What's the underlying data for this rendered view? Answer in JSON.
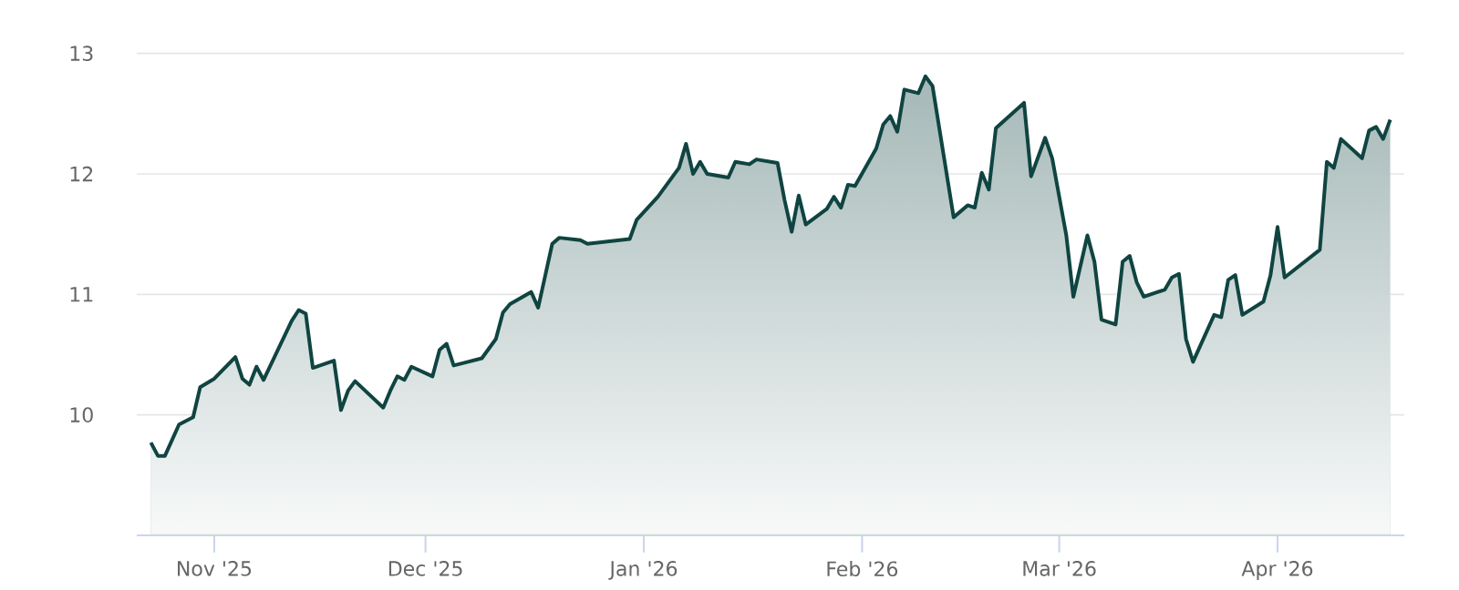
{
  "chart_data": {
    "type": "area",
    "grid": "y",
    "line_style": "solid",
    "xlim": [
      "2025-10-21",
      "2026-04-19"
    ],
    "xticks": [
      {
        "value": "2025-11-01",
        "label": "Nov '25"
      },
      {
        "value": "2025-12-01",
        "label": "Dec '25"
      },
      {
        "value": "2026-01-01",
        "label": "Jan '26"
      },
      {
        "value": "2026-02-01",
        "label": "Feb '26"
      },
      {
        "value": "2026-03-01",
        "label": "Mar '26"
      },
      {
        "value": "2026-04-01",
        "label": "Apr '26"
      }
    ],
    "ylim": [
      9,
      13
    ],
    "yticks": [
      10,
      11,
      12,
      13
    ],
    "series": [
      {
        "color": "#0f4441",
        "x": [
          "2025-10-23",
          "2025-10-24",
          "2025-10-25",
          "2025-10-27",
          "2025-10-29",
          "2025-10-30",
          "2025-11-01",
          "2025-11-04",
          "2025-11-05",
          "2025-11-06",
          "2025-11-07",
          "2025-11-08",
          "2025-11-12",
          "2025-11-13",
          "2025-11-14",
          "2025-11-15",
          "2025-11-18",
          "2025-11-19",
          "2025-11-20",
          "2025-11-21",
          "2025-11-25",
          "2025-11-26",
          "2025-11-27",
          "2025-11-28",
          "2025-11-29",
          "2025-12-02",
          "2025-12-03",
          "2025-12-04",
          "2025-12-05",
          "2025-12-09",
          "2025-12-11",
          "2025-12-12",
          "2025-12-13",
          "2025-12-16",
          "2025-12-17",
          "2025-12-19",
          "2025-12-20",
          "2025-12-23",
          "2025-12-24",
          "2025-12-30",
          "2025-12-31",
          "2026-01-03",
          "2026-01-06",
          "2026-01-07",
          "2026-01-08",
          "2026-01-09",
          "2026-01-10",
          "2026-01-13",
          "2026-01-14",
          "2026-01-16",
          "2026-01-17",
          "2026-01-20",
          "2026-01-21",
          "2026-01-22",
          "2026-01-23",
          "2026-01-24",
          "2026-01-27",
          "2026-01-28",
          "2026-01-29",
          "2026-01-30",
          "2026-01-31",
          "2026-02-03",
          "2026-02-04",
          "2026-02-05",
          "2026-02-06",
          "2026-02-07",
          "2026-02-09",
          "2026-02-10",
          "2026-02-11",
          "2026-02-14",
          "2026-02-16",
          "2026-02-17",
          "2026-02-18",
          "2026-02-19",
          "2026-02-20",
          "2026-02-24",
          "2026-02-25",
          "2026-02-27",
          "2026-02-28",
          "2026-03-02",
          "2026-03-03",
          "2026-03-05",
          "2026-03-06",
          "2026-03-07",
          "2026-03-09",
          "2026-03-10",
          "2026-03-11",
          "2026-03-12",
          "2026-03-13",
          "2026-03-16",
          "2026-03-17",
          "2026-03-18",
          "2026-03-19",
          "2026-03-20",
          "2026-03-23",
          "2026-03-24",
          "2026-03-25",
          "2026-03-26",
          "2026-03-27",
          "2026-03-30",
          "2026-03-31",
          "2026-04-01",
          "2026-04-02",
          "2026-04-07",
          "2026-04-08",
          "2026-04-09",
          "2026-04-10",
          "2026-04-13",
          "2026-04-14",
          "2026-04-15",
          "2026-04-16",
          "2026-04-17"
        ],
        "values": [
          9.77,
          9.66,
          9.66,
          9.92,
          9.98,
          10.23,
          10.3,
          10.48,
          10.3,
          10.25,
          10.4,
          10.29,
          10.78,
          10.87,
          10.84,
          10.39,
          10.45,
          10.04,
          10.2,
          10.28,
          10.06,
          10.2,
          10.32,
          10.29,
          10.4,
          10.32,
          10.54,
          10.59,
          10.41,
          10.47,
          10.63,
          10.85,
          10.92,
          11.02,
          10.89,
          11.42,
          11.47,
          11.45,
          11.42,
          11.46,
          11.62,
          11.81,
          12.05,
          12.25,
          12.0,
          12.1,
          12.0,
          11.97,
          12.1,
          12.08,
          12.12,
          12.09,
          11.78,
          11.52,
          11.82,
          11.58,
          11.71,
          11.81,
          11.72,
          11.91,
          11.9,
          12.21,
          12.41,
          12.48,
          12.35,
          12.7,
          12.67,
          12.81,
          12.73,
          11.64,
          11.74,
          11.72,
          12.01,
          11.87,
          12.38,
          12.59,
          11.98,
          12.3,
          12.13,
          11.49,
          10.98,
          11.49,
          11.27,
          10.79,
          10.75,
          11.27,
          11.32,
          11.1,
          10.98,
          11.04,
          11.14,
          11.17,
          10.63,
          10.44,
          10.83,
          10.81,
          11.12,
          11.16,
          10.83,
          10.94,
          11.16,
          11.56,
          11.14,
          11.37,
          12.1,
          12.05,
          12.29,
          12.13,
          12.36,
          12.39,
          12.29,
          12.45
        ]
      }
    ]
  }
}
